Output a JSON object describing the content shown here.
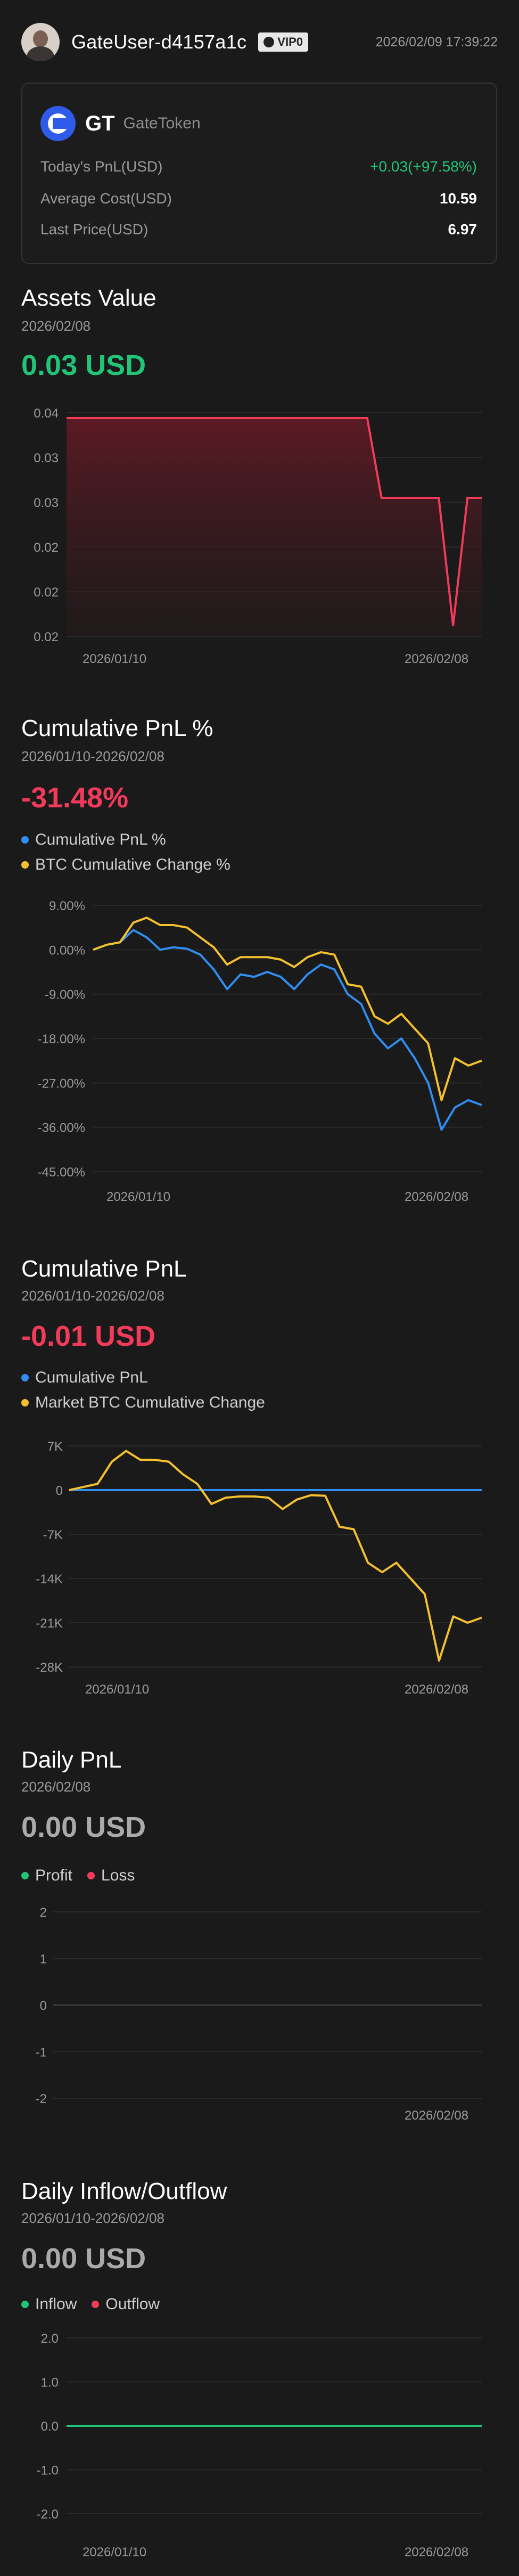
{
  "header": {
    "username": "GateUser-d4157a1c",
    "vip_label": "VIP0",
    "timestamp": "2026/02/09 17:39:22"
  },
  "token": {
    "symbol": "GT",
    "name": "GateToken",
    "rows": [
      {
        "label": "Today's PnL(USD)",
        "value": "+0.03(+97.58%)"
      },
      {
        "label": "Average Cost(USD)",
        "value": "10.59"
      },
      {
        "label": "Last Price(USD)",
        "value": "6.97"
      }
    ]
  },
  "assets": {
    "title": "Assets Value",
    "date": "2026/02/08",
    "value": "0.03 USD"
  },
  "cum_pnl_pct": {
    "title": "Cumulative PnL %",
    "date": "2026/01/10-2026/02/08",
    "value": "-31.48%",
    "legend": [
      "Cumulative PnL %",
      "BTC Cumulative Change %"
    ]
  },
  "cum_pnl": {
    "title": "Cumulative PnL",
    "date": "2026/01/10-2026/02/08",
    "value": "-0.01 USD",
    "legend": [
      "Cumulative PnL",
      "Market BTC Cumulative Change"
    ]
  },
  "daily_pnl": {
    "title": "Daily PnL",
    "date": "2026/02/08",
    "value": "0.00 USD",
    "legend": [
      "Profit",
      "Loss"
    ]
  },
  "inflow": {
    "title": "Daily Inflow/Outflow",
    "date": "2026/01/10-2026/02/08",
    "value": "0.00 USD",
    "legend": [
      "Inflow",
      "Outflow"
    ]
  },
  "colors": {
    "green": "#22c478",
    "red": "#f23b5a",
    "blue": "#2f8ef0",
    "yellow": "#f5c02e",
    "bg": "#1a1a1a"
  },
  "chart_data": [
    {
      "type": "area",
      "title": "Assets Value",
      "y_tick_labels": [
        "0.04",
        "0.03",
        "0.03",
        "0.02",
        "0.02",
        "0.02"
      ],
      "x_tick_labels": [
        "2026/01/10",
        "2026/02/08"
      ],
      "ylim": [
        0.0195,
        0.0405
      ],
      "series": [
        {
          "values": [
            0.04,
            0.04,
            0.04,
            0.04,
            0.04,
            0.04,
            0.04,
            0.04,
            0.04,
            0.04,
            0.04,
            0.04,
            0.04,
            0.04,
            0.04,
            0.04,
            0.04,
            0.04,
            0.04,
            0.04,
            0.04,
            0.04,
            0.0325,
            0.0325,
            0.0325,
            0.0325,
            0.0325,
            0.0205,
            0.0325,
            0.0325
          ]
        }
      ]
    },
    {
      "type": "line",
      "title": "Cumulative PnL %",
      "y_tick_labels": [
        "9.00%",
        "0.00%",
        "-9.00%",
        "-18.00%",
        "-27.00%",
        "-36.00%",
        "-45.00%"
      ],
      "x_tick_labels": [
        "2026/01/10",
        "2026/02/08"
      ],
      "ylim": [
        -45,
        9
      ],
      "series": [
        {
          "name": "Cumulative PnL %",
          "values": [
            0,
            1,
            1.5,
            4,
            2.5,
            0,
            0.5,
            0.2,
            -1,
            -4,
            -8,
            -5,
            -5.5,
            -4.5,
            -5.5,
            -8,
            -5,
            -3,
            -4,
            -9,
            -11,
            -17,
            -20,
            -18,
            -22,
            -27,
            -36.5,
            -32,
            -30.5,
            -31.5
          ]
        },
        {
          "name": "BTC Cumulative Change %",
          "values": [
            0,
            1,
            1.5,
            5.5,
            6.5,
            5,
            5,
            4.5,
            2.5,
            0.5,
            -3,
            -1.5,
            -1.5,
            -1.5,
            -2,
            -3.5,
            -1.5,
            -0.5,
            -1,
            -7,
            -7.5,
            -13.5,
            -15,
            -13,
            -16,
            -19,
            -30.5,
            -22,
            -23.5,
            -22.5
          ]
        }
      ]
    },
    {
      "type": "line",
      "title": "Cumulative PnL",
      "y_tick_labels": [
        "7K",
        "0",
        "-7K",
        "-14K",
        "-21K",
        "-28K"
      ],
      "x_tick_labels": [
        "2026/01/10",
        "2026/02/08"
      ],
      "ylim": [
        -28000,
        7000
      ],
      "series": [
        {
          "name": "Cumulative PnL",
          "values": [
            0,
            0,
            0,
            0,
            0,
            0,
            0,
            0,
            0,
            0,
            0,
            0,
            0,
            0,
            0,
            0,
            0,
            0,
            0,
            0,
            0,
            0,
            0,
            0,
            0,
            0,
            0,
            0,
            0,
            0
          ]
        },
        {
          "name": "Market BTC Cumulative Change",
          "values": [
            0,
            500,
            1000,
            4500,
            6200,
            4800,
            4800,
            4500,
            2500,
            1000,
            -2200,
            -1200,
            -1000,
            -1000,
            -1200,
            -3000,
            -1500,
            -800,
            -900,
            -5800,
            -6200,
            -11500,
            -13000,
            -11500,
            -14000,
            -16500,
            -27000,
            -20000,
            -21000,
            -20200
          ]
        }
      ]
    },
    {
      "type": "bar",
      "title": "Daily PnL",
      "y_tick_labels": [
        "2",
        "1",
        "0",
        "-1",
        "-2"
      ],
      "x_tick_labels": [
        "2026/02/08"
      ],
      "ylim": [
        -2,
        2
      ],
      "series": [
        {
          "name": "Profit",
          "values": [
            0
          ]
        },
        {
          "name": "Loss",
          "values": [
            0
          ]
        }
      ]
    },
    {
      "type": "line",
      "title": "Daily Inflow/Outflow",
      "y_tick_labels": [
        "2.0",
        "1.0",
        "0.0",
        "-1.0",
        "-2.0"
      ],
      "x_tick_labels": [
        "2026/01/10",
        "2026/02/08"
      ],
      "ylim": [
        -2,
        2
      ],
      "series": [
        {
          "name": "Inflow",
          "values": [
            0,
            0,
            0,
            0,
            0,
            0,
            0,
            0,
            0,
            0,
            0,
            0,
            0,
            0,
            0,
            0,
            0,
            0,
            0,
            0,
            0,
            0,
            0,
            0,
            0,
            0,
            0,
            0,
            0,
            0
          ]
        }
      ]
    }
  ]
}
